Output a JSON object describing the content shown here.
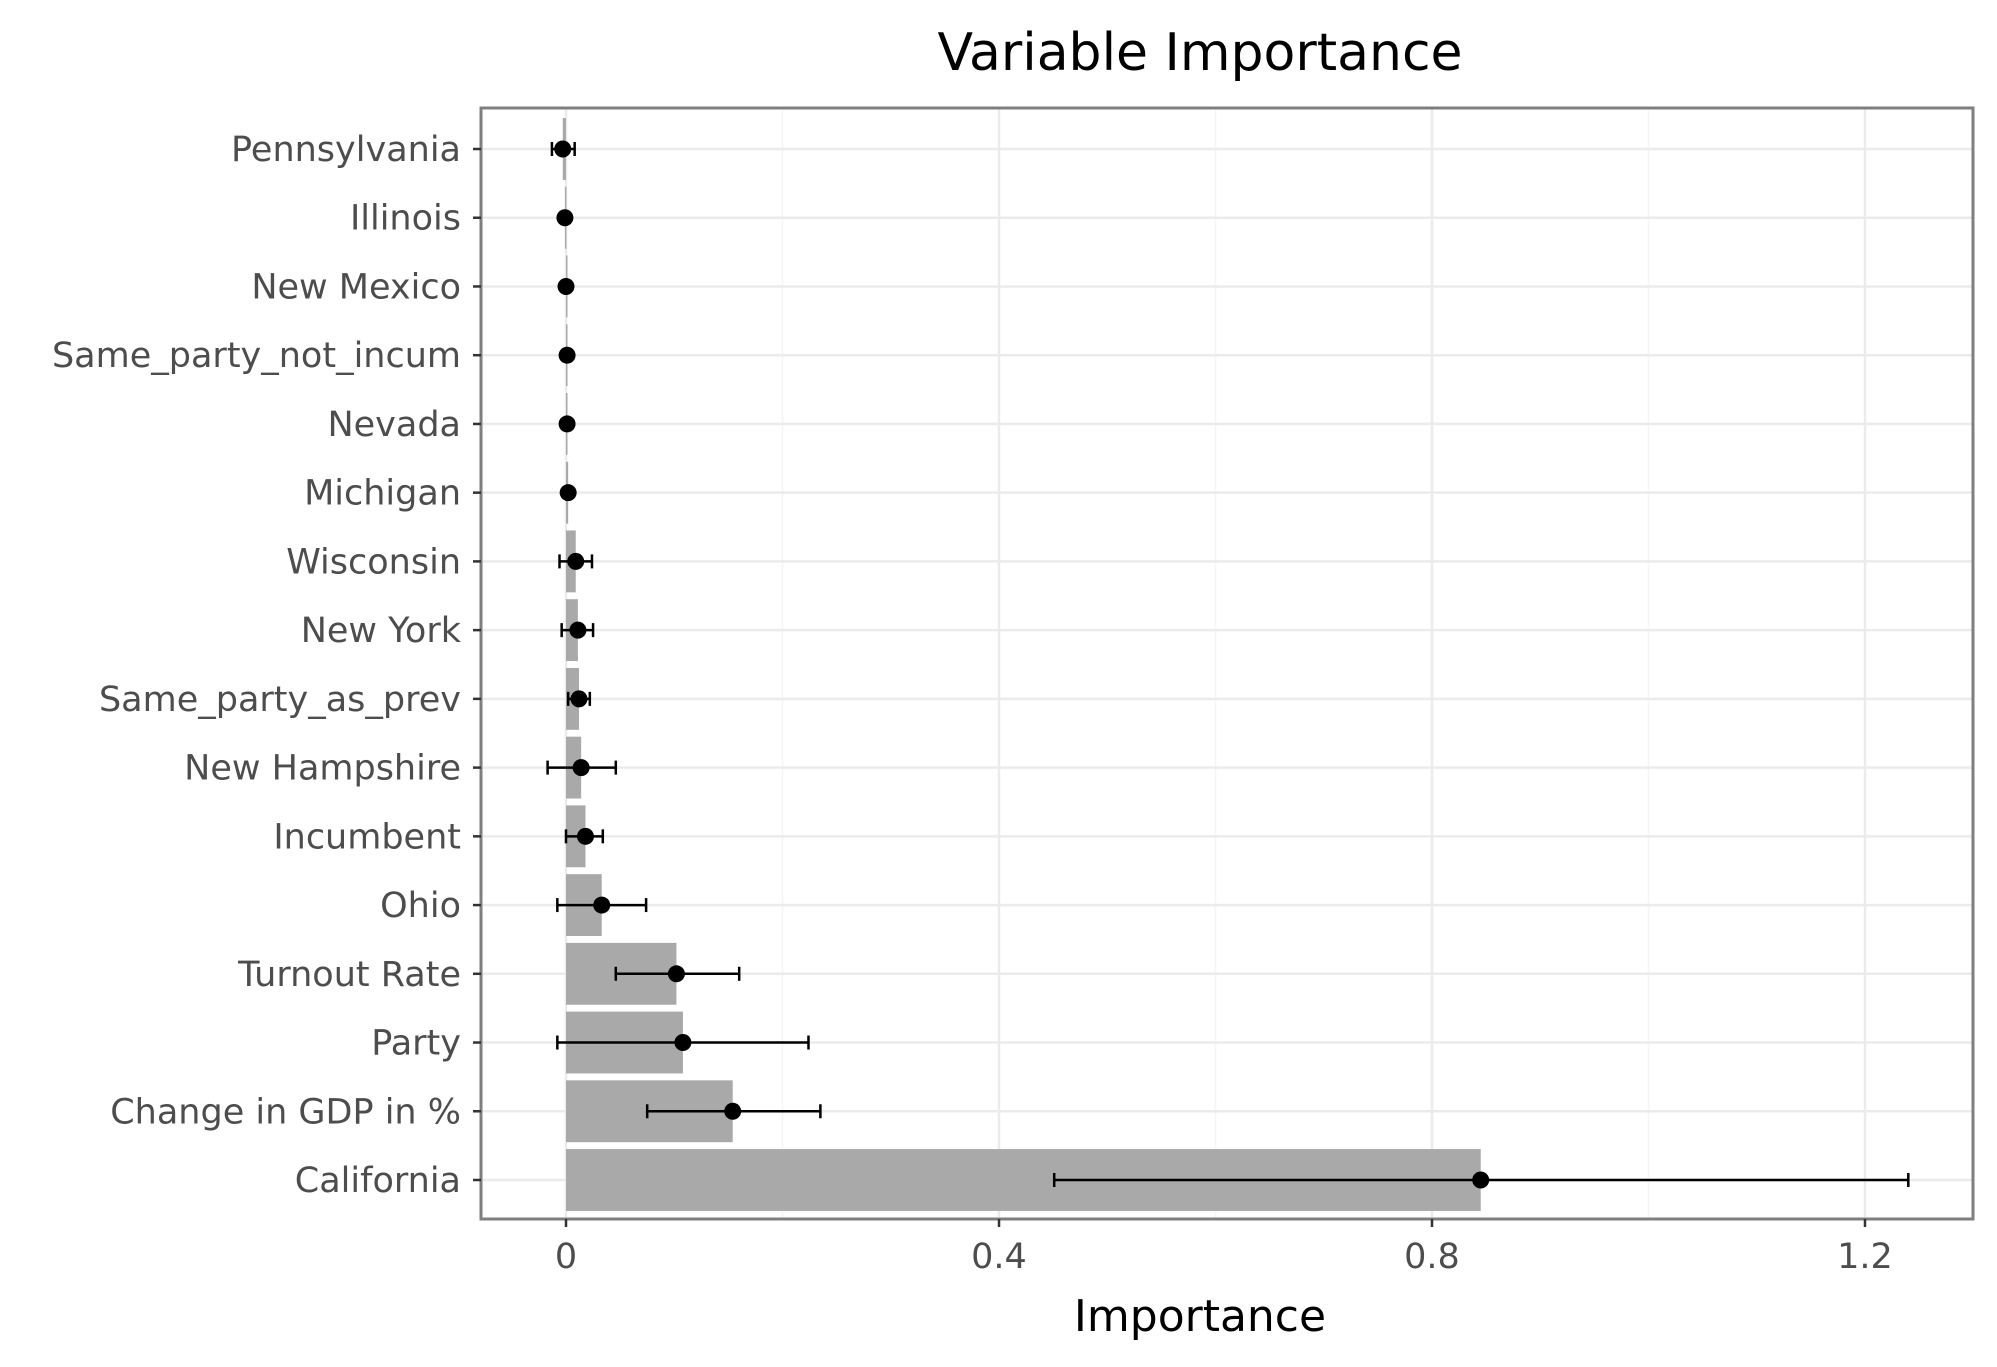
{
  "chart_data": {
    "type": "bar",
    "title": "Variable Importance",
    "xlabel": "Importance",
    "ylabel": "",
    "xlim": [
      -0.08,
      1.3
    ],
    "x_ticks": [
      0,
      0.4,
      0.8,
      1.2
    ],
    "x_tick_labels": [
      "0",
      "0.4",
      "0.8",
      "1.2"
    ],
    "orientation": "horizontal",
    "grid": true,
    "categories": [
      "Pennsylvania",
      "Illinois",
      "New Mexico",
      "Same_party_not_incum",
      "Nevada",
      "Michigan",
      "Wisconsin",
      "New York",
      "Same_party_as_prev",
      "New Hampshire",
      "Incumbent",
      "Ohio",
      "Turnout Rate",
      "Party",
      "Change in GDP in %",
      "California"
    ],
    "values": [
      -0.003,
      -0.001,
      0.0,
      0.001,
      0.001,
      0.002,
      0.009,
      0.011,
      0.012,
      0.014,
      0.018,
      0.033,
      0.102,
      0.108,
      0.154,
      0.845
    ],
    "error_low": [
      -0.013,
      -0.001,
      0.0,
      0.001,
      0.001,
      0.002,
      -0.006,
      -0.004,
      0.002,
      -0.017,
      0.0,
      -0.008,
      0.046,
      -0.008,
      0.075,
      0.451
    ],
    "error_high": [
      0.008,
      -0.001,
      0.0,
      0.001,
      0.001,
      0.002,
      0.024,
      0.025,
      0.022,
      0.046,
      0.034,
      0.074,
      0.16,
      0.224,
      0.235,
      1.24
    ],
    "colors": {
      "bar": "#a9a9a9",
      "point": "#000000",
      "grid_major": "#ebebeb",
      "grid_minor": "#f5f5f5",
      "panel_border": "#7f7f7f",
      "tick_label": "#4d4d4d"
    }
  }
}
